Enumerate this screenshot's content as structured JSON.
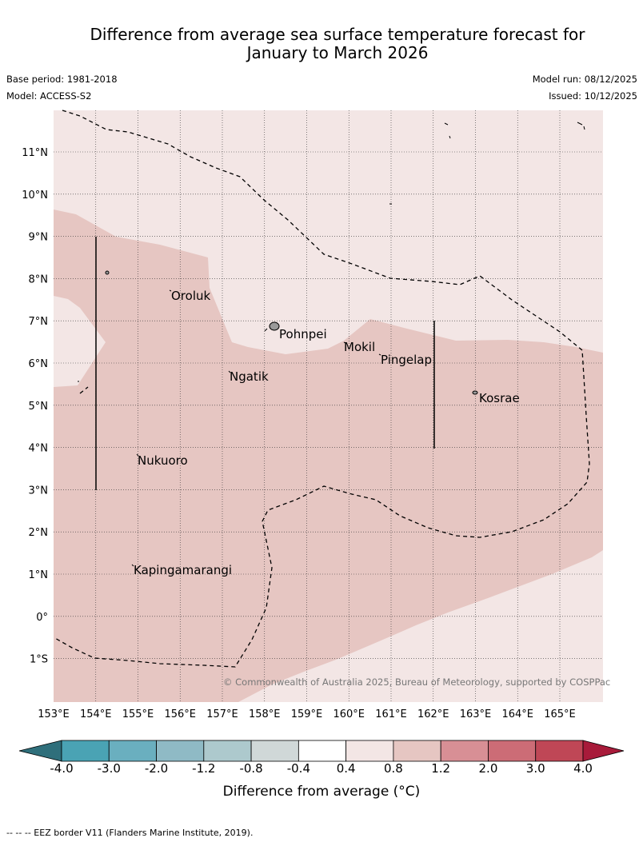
{
  "header": {
    "title_line1": "Difference from average sea surface temperature forecast for",
    "title_line2": "January to March 2026",
    "base_period": "Base period: 1981-2018",
    "model": "Model: ACCESS-S2",
    "model_run": "Model run: 08/12/2025",
    "issued": "Issued: 10/12/2025"
  },
  "map": {
    "longitude_labels": [
      "153°E",
      "154°E",
      "155°E",
      "156°E",
      "157°E",
      "158°E",
      "159°E",
      "160°E",
      "161°E",
      "162°E",
      "163°E",
      "164°E",
      "165°E"
    ],
    "latitude_labels": [
      "11°N",
      "10°N",
      "9°N",
      "8°N",
      "7°N",
      "6°N",
      "5°N",
      "4°N",
      "3°N",
      "2°N",
      "1°N",
      "0°",
      "1°S"
    ],
    "places": [
      "Oroluk",
      "Pohnpei",
      "Mokil",
      "Pingelap",
      "Ngatik",
      "Kosrae",
      "Nukuoro",
      "Kapingamarangi"
    ],
    "copyright": "© Commonwealth of Australia 2025, Bureau of Meteorology, supported by COSPPac",
    "colors": {
      "anomaly_0_4_to_0_8": "#f3e6e5",
      "anomaly_0_8_to_1_2": "#e6c6c2"
    }
  },
  "colorbar": {
    "labels": [
      "-4.0",
      "-3.0",
      "-2.0",
      "-1.2",
      "-0.8",
      "-0.4",
      "0.4",
      "0.8",
      "1.2",
      "2.0",
      "3.0",
      "4.0"
    ],
    "colors": [
      "#2f6f7b",
      "#4aa3b4",
      "#6aafbf",
      "#8fbac5",
      "#adc9cd",
      "#d0d8d8",
      "#ffffff",
      "#f3e6e5",
      "#e6c6c2",
      "#d88f95",
      "#cc6c76",
      "#bf4756",
      "#a81b3a"
    ],
    "title": "Difference from average (°C)"
  },
  "footer": {
    "note": "--  --  -- EEZ border V11 (Flanders Marine Institute, 2019)."
  }
}
